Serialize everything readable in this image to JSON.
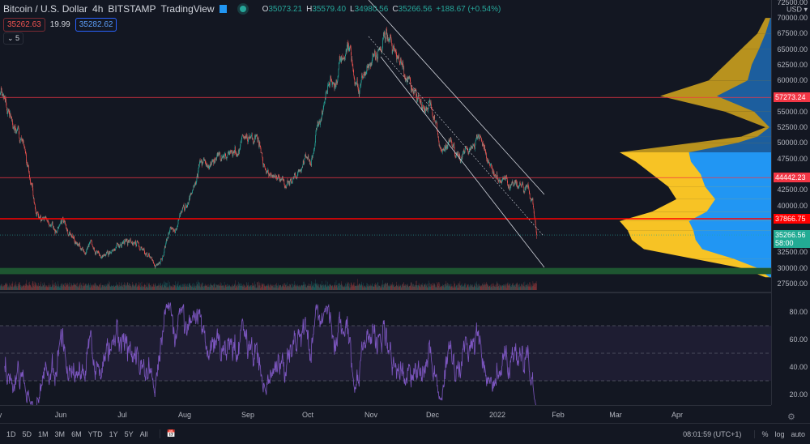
{
  "header": {
    "symbol": "Bitcoin / U.S. Dollar",
    "interval": "4h",
    "exchange": "BITSTAMP",
    "source": "TradingView",
    "open_label": "O",
    "open": "35073.21",
    "high_label": "H",
    "high": "35579.40",
    "low_label": "L",
    "low": "34980.56",
    "close_label": "C",
    "close": "35266.56",
    "change": "+188.67 (+0.54%)"
  },
  "quote": {
    "sell": "35262.63",
    "spread": "19.99",
    "buy": "35282.62"
  },
  "indicators_collapsed": "⌄ 5",
  "axis": {
    "currency": "USD ▾",
    "top_partial": "72500.00",
    "ticks": [
      "70000.00",
      "67500.00",
      "65000.00",
      "62500.00",
      "60000.00",
      "55000.00",
      "52500.00",
      "50000.00",
      "47500.00",
      "42500.00",
      "40000.00",
      "32500.00",
      "30000.00",
      "27500.00"
    ],
    "rsi_ticks": [
      "80.00",
      "60.00",
      "40.00",
      "20.00"
    ]
  },
  "levels": [
    {
      "price": "57273.24",
      "color": "#f23645"
    },
    {
      "price": "44442.23",
      "color": "#f23645"
    },
    {
      "price": "37866.75",
      "color": "#ff0000"
    }
  ],
  "last_price": {
    "price": "35266.56",
    "countdown": "58:00",
    "color": "#22ab94"
  },
  "months": [
    "y",
    "Jun",
    "Jul",
    "Aug",
    "Sep",
    "Oct",
    "Nov",
    "Dec",
    "2022",
    "Feb",
    "Mar",
    "Apr"
  ],
  "bottom": {
    "ranges": [
      "1D",
      "5D",
      "1M",
      "3M",
      "6M",
      "YTD",
      "1Y",
      "5Y",
      "All"
    ],
    "clock": "08:01:59 (UTC+1)",
    "pct": "%",
    "log": "log",
    "auto": "auto"
  },
  "colors": {
    "up": "#26a69a",
    "down": "#ef5350",
    "rsi": "#7e57c2",
    "profile_up": "#f7c325",
    "profile_down": "#2196f3",
    "support_zone": "#1e5631"
  },
  "chart_data": {
    "type": "candlestick",
    "interval": "4h",
    "ylim": [
      27500,
      72500
    ],
    "close_path": [
      [
        "2021-05-02",
        58000
      ],
      [
        "2021-05-14",
        48200
      ],
      [
        "2021-05-20",
        39200
      ],
      [
        "2021-05-26",
        36600
      ],
      [
        "2021-06-01",
        36600
      ],
      [
        "2021-06-11",
        34000
      ],
      [
        "2021-06-23",
        32700
      ],
      [
        "2021-07-05",
        34000
      ],
      [
        "2021-07-20",
        30700
      ],
      [
        "2021-07-26",
        36600
      ],
      [
        "2021-08-05",
        42000
      ],
      [
        "2021-08-09",
        45600
      ],
      [
        "2021-08-25",
        48900
      ],
      [
        "2021-09-06",
        51500
      ],
      [
        "2021-09-10",
        46300
      ],
      [
        "2021-09-22",
        42000
      ],
      [
        "2021-10-01",
        48200
      ],
      [
        "2021-10-09",
        56000
      ],
      [
        "2021-10-17",
        62500
      ],
      [
        "2021-10-21",
        65000
      ],
      [
        "2021-10-26",
        59900
      ],
      [
        "2021-11-01",
        62500
      ],
      [
        "2021-11-09",
        67000
      ],
      [
        "2021-11-15",
        62500
      ],
      [
        "2021-11-25",
        57300
      ],
      [
        "2021-12-01",
        56700
      ],
      [
        "2021-12-05",
        48900
      ],
      [
        "2021-12-15",
        48200
      ],
      [
        "2021-12-25",
        50800
      ],
      [
        "2022-01-02",
        45600
      ],
      [
        "2022-01-08",
        42000
      ],
      [
        "2022-01-14",
        43100
      ],
      [
        "2022-01-20",
        42000
      ],
      [
        "2022-01-22",
        35266.56
      ]
    ],
    "support_zone": [
      29000,
      30000
    ],
    "rsi": {
      "period": 14,
      "bands": [
        70,
        50,
        30
      ]
    },
    "volume_profile": [
      [
        70000,
        10,
        0.6
      ],
      [
        67500,
        20,
        0.5
      ],
      [
        65000,
        40,
        0.55
      ],
      [
        62500,
        60,
        0.55
      ],
      [
        60000,
        80,
        0.6
      ],
      [
        57500,
        140,
        0.5
      ],
      [
        55000,
        60,
        0.6
      ],
      [
        52500,
        10,
        0.5
      ],
      [
        51000,
        40,
        0.5
      ],
      [
        50000,
        100,
        0.55
      ],
      [
        48500,
        190,
        0.45
      ],
      [
        47000,
        170,
        0.4
      ],
      [
        45000,
        150,
        0.4
      ],
      [
        43000,
        130,
        0.35
      ],
      [
        41000,
        120,
        0.4
      ],
      [
        39000,
        150,
        0.45
      ],
      [
        37500,
        190,
        0.45
      ],
      [
        36000,
        180,
        0.45
      ],
      [
        34500,
        175,
        0.45
      ],
      [
        33000,
        160,
        0.45
      ],
      [
        31500,
        100,
        0.5
      ],
      [
        30000,
        40,
        0.5
      ],
      [
        28500,
        10,
        0.5
      ]
    ]
  }
}
